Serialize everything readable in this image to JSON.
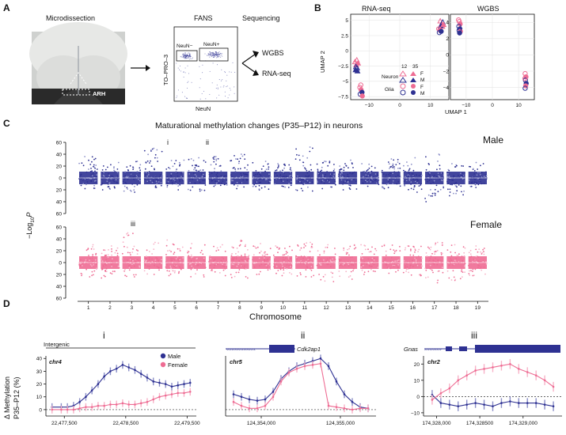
{
  "colors": {
    "male": "#2e3192",
    "female": "#ee6c93",
    "male_light": "#8b8fc8",
    "female_light": "#f7b2c7"
  },
  "panelA": {
    "letter": "A",
    "microdissection": "Microdissection",
    "arh": "ARH",
    "fans": "FANS",
    "sequencing": "Sequencing",
    "topro": "TO–PRO–3",
    "neun_neg": "NeuN−",
    "neun_pos": "NeuN+",
    "neun": "NeuN",
    "wgbs": "WGBS",
    "rnaseq": "RNA-seq"
  },
  "panelB": {
    "letter": "B",
    "title_left": "RNA-seq",
    "title_right": "WGBS",
    "ylabel": "UMAP 2",
    "xlabel": "UMAP 1",
    "legend": {
      "h12": "12",
      "h35": "35",
      "neuron": "Neuron",
      "glia": "Glia",
      "f": "F",
      "m": "M"
    },
    "left_yticks": [
      "5",
      "2.5",
      "0",
      "−2.5",
      "−5",
      "−7.5"
    ],
    "left_xticks": [
      "−10",
      "0",
      "10"
    ],
    "right_yticks": [
      "4",
      "2",
      "0",
      "−2",
      "−4"
    ],
    "right_xticks": [
      "−10",
      "0",
      "10"
    ]
  },
  "panelC": {
    "letter": "C",
    "title": "Maturational methylation changes (P35–P12) in neurons",
    "male_label": "Male",
    "female_label": "Female",
    "ylabel_main": "−Log",
    "ylabel_sub": "10",
    "ylabel_end": "P",
    "xlabel": "Chromosome",
    "yticks_top": [
      "60",
      "40",
      "20",
      "0",
      "20",
      "40",
      "60"
    ],
    "yticks_bottom": [
      "60",
      "40",
      "20",
      "0",
      "20",
      "40",
      "60"
    ],
    "chromosomes": [
      "1",
      "2",
      "3",
      "4",
      "5",
      "6",
      "7",
      "8",
      "9",
      "10",
      "11",
      "12",
      "13",
      "14",
      "15",
      "16",
      "17",
      "18",
      "19"
    ],
    "marker_i": "i",
    "marker_ii": "ii",
    "marker_iii": "iii"
  },
  "panelD": {
    "letter": "D",
    "ylabel1": "Δ Methylation",
    "ylabel2": "P35–P12 (%)",
    "legend_male": "Male",
    "legend_female": "Female",
    "i": {
      "numeral": "i",
      "annotation": "Intergenic",
      "chrom": "chr4",
      "xticks": [
        "22,477,500",
        "22,478,500",
        "22,479,500"
      ],
      "yticks": [
        "40",
        "30",
        "20",
        "10",
        "0"
      ]
    },
    "ii": {
      "numeral": "ii",
      "gene": "Cdk2ap1",
      "chrom": "chr5",
      "xticks": [
        "124,354,000",
        "124,355,000"
      ]
    },
    "iii": {
      "numeral": "iii",
      "gene": "Gnas",
      "chrom": "chr2",
      "xticks": [
        "174,328,000",
        "174,328500",
        "174,329,000"
      ],
      "yticks": [
        "20",
        "10",
        "0",
        "−10"
      ]
    }
  },
  "chart_data": [
    {
      "type": "scatter",
      "panel": "B-RNA-seq",
      "title": "RNA-seq",
      "xlabel": "UMAP 1",
      "ylabel": "UMAP 2",
      "xlim": [
        -16,
        16
      ],
      "ylim": [
        -8,
        6
      ],
      "series": [
        {
          "name": "Neuron",
          "points": [
            [
              -14.6,
              -1.8
            ],
            [
              -14.2,
              -2.3
            ],
            [
              -13.9,
              -2.8
            ],
            [
              -14.4,
              -3.1
            ],
            [
              -14.0,
              -1.5
            ],
            [
              -13.6,
              -2.0
            ],
            [
              -14.3,
              -2.6
            ],
            [
              -13.8,
              -3.3
            ]
          ]
        },
        {
          "name": "Glia",
          "points": [
            [
              -13.0,
              -6.0
            ],
            [
              -12.6,
              -6.4
            ],
            [
              -12.9,
              -7.1
            ],
            [
              -12.3,
              -6.8
            ],
            [
              -12.7,
              -5.6
            ],
            [
              -12.2,
              -7.4
            ]
          ]
        },
        {
          "name": "Neuron",
          "points": [
            [
              13.2,
              4.9
            ],
            [
              13.6,
              4.4
            ],
            [
              14.0,
              4.7
            ],
            [
              13.4,
              4.1
            ],
            [
              13.9,
              4.0
            ],
            [
              14.3,
              4.3
            ]
          ]
        },
        {
          "name": "Glia",
          "points": [
            [
              12.7,
              3.6
            ],
            [
              13.1,
              3.4
            ],
            [
              12.9,
              3.0
            ],
            [
              13.5,
              3.2
            ]
          ]
        }
      ]
    },
    {
      "type": "scatter",
      "panel": "B-WGBS",
      "title": "WGBS",
      "xlabel": "UMAP 1",
      "xlim": [
        -16,
        16
      ],
      "ylim": [
        -5.5,
        5
      ],
      "series": [
        {
          "name": "Neuron",
          "points": [
            [
              -12.6,
              4.1
            ],
            [
              -12.3,
              3.8
            ],
            [
              -12.8,
              3.5
            ],
            [
              -12.4,
              3.2
            ],
            [
              -12.9,
              4.3
            ],
            [
              -12.2,
              2.9
            ],
            [
              -12.7,
              3.0
            ],
            [
              -12.5,
              2.7
            ]
          ]
        },
        {
          "name": "Glia",
          "points": [
            [
              12.5,
              -2.3
            ],
            [
              12.8,
              -2.7
            ],
            [
              12.6,
              -3.1
            ],
            [
              12.9,
              -3.5
            ],
            [
              12.4,
              -2.9
            ],
            [
              12.7,
              -3.8
            ],
            [
              12.5,
              -4.1
            ]
          ]
        }
      ]
    },
    {
      "type": "scatter",
      "panel": "C",
      "title": "Maturational methylation changes (P35–P12) in neurons",
      "xlabel": "Chromosome",
      "ylim": [
        0,
        60
      ],
      "categories": [
        "1",
        "2",
        "3",
        "4",
        "5",
        "6",
        "7",
        "8",
        "9",
        "10",
        "11",
        "12",
        "13",
        "14",
        "15",
        "16",
        "17",
        "18",
        "19"
      ],
      "series": [
        {
          "name": "Male",
          "direction": "up",
          "values": [
            36,
            26,
            28,
            50,
            30,
            34,
            36,
            40,
            28,
            24,
            52,
            28,
            30,
            24,
            32,
            34,
            40,
            24,
            26
          ]
        },
        {
          "name": "Male",
          "direction": "down",
          "values": [
            18,
            20,
            24,
            16,
            20,
            22,
            14,
            18,
            20,
            16,
            22,
            18,
            20,
            14,
            18,
            24,
            40,
            30,
            16
          ]
        },
        {
          "name": "Female",
          "direction": "up",
          "values": [
            30,
            28,
            50,
            34,
            38,
            32,
            30,
            38,
            32,
            28,
            34,
            30,
            30,
            30,
            30,
            28,
            34,
            30,
            28
          ]
        },
        {
          "name": "Female",
          "direction": "down",
          "values": [
            24,
            26,
            24,
            20,
            22,
            24,
            22,
            26,
            20,
            22,
            24,
            32,
            28,
            20,
            18,
            22,
            34,
            30,
            22
          ]
        }
      ]
    },
    {
      "type": "line",
      "panel": "D-i",
      "xlabel": "chr4",
      "ylim": [
        -5,
        42
      ],
      "series": [
        {
          "name": "Male",
          "x": [
            22477300,
            22477450,
            22477550,
            22477650,
            22477750,
            22477850,
            22477950,
            22478050,
            22478150,
            22478250,
            22478350,
            22478450,
            22478550,
            22478650,
            22478750,
            22478850,
            22478950,
            22479050,
            22479150,
            22479250,
            22479350,
            22479450,
            22479550
          ],
          "values": [
            2,
            2,
            2,
            3,
            6,
            10,
            15,
            20,
            26,
            30,
            32,
            35,
            33,
            31,
            28,
            25,
            22,
            21,
            20,
            18,
            19,
            20,
            21
          ]
        },
        {
          "name": "Female",
          "x": [
            22477300,
            22477450,
            22477550,
            22477650,
            22477750,
            22477850,
            22477950,
            22478050,
            22478150,
            22478250,
            22478350,
            22478450,
            22478550,
            22478650,
            22478750,
            22478850,
            22478950,
            22479050,
            22479150,
            22479250,
            22479350,
            22479450,
            22479550
          ],
          "values": [
            0,
            0,
            0,
            0,
            1,
            2,
            2,
            3,
            3,
            4,
            4,
            5,
            4,
            4,
            5,
            6,
            8,
            10,
            11,
            12,
            13,
            13,
            14
          ]
        }
      ]
    },
    {
      "type": "line",
      "panel": "D-ii",
      "xlabel": "chr5",
      "ylim": [
        -5,
        42
      ],
      "series": [
        {
          "name": "Male",
          "x": [
            124353650,
            124353750,
            124353850,
            124353950,
            124354050,
            124354150,
            124354250,
            124354350,
            124354450,
            124354550,
            124354650,
            124354750,
            124354850,
            124354950,
            124355050,
            124355150,
            124355250,
            124355350
          ],
          "values": [
            12,
            10,
            8,
            7,
            8,
            14,
            24,
            30,
            34,
            36,
            38,
            40,
            34,
            22,
            12,
            6,
            2,
            1
          ]
        },
        {
          "name": "Female",
          "x": [
            124353650,
            124353750,
            124353850,
            124353950,
            124354050,
            124354150,
            124354250,
            124354350,
            124354450,
            124354550,
            124354650,
            124354750,
            124354850,
            124354950,
            124355050,
            124355150,
            124355250,
            124355350
          ],
          "values": [
            6,
            3,
            1,
            1,
            3,
            10,
            22,
            29,
            32,
            34,
            35,
            36,
            3,
            2,
            1,
            0,
            1,
            1
          ]
        }
      ]
    },
    {
      "type": "line",
      "panel": "D-iii",
      "xlabel": "chr2",
      "ylim": [
        -12,
        25
      ],
      "series": [
        {
          "name": "Male",
          "x": [
            174327950,
            174328050,
            174328150,
            174328250,
            174328350,
            174328450,
            174328550,
            174328650,
            174328750,
            174328850,
            174328950,
            174329050,
            174329150,
            174329250,
            174329350
          ],
          "values": [
            1,
            -4,
            -5,
            -6,
            -5,
            -4,
            -5,
            -6,
            -4,
            -3,
            -4,
            -4,
            -4,
            -5,
            -6
          ]
        },
        {
          "name": "Female",
          "x": [
            174327950,
            174328050,
            174328150,
            174328250,
            174328350,
            174328450,
            174328550,
            174328650,
            174328750,
            174328850,
            174328950,
            174329050,
            174329150,
            174329250,
            174329350
          ],
          "values": [
            -2,
            2,
            5,
            10,
            13,
            16,
            17,
            18,
            19,
            20,
            17,
            15,
            13,
            10,
            6
          ]
        }
      ]
    }
  ]
}
